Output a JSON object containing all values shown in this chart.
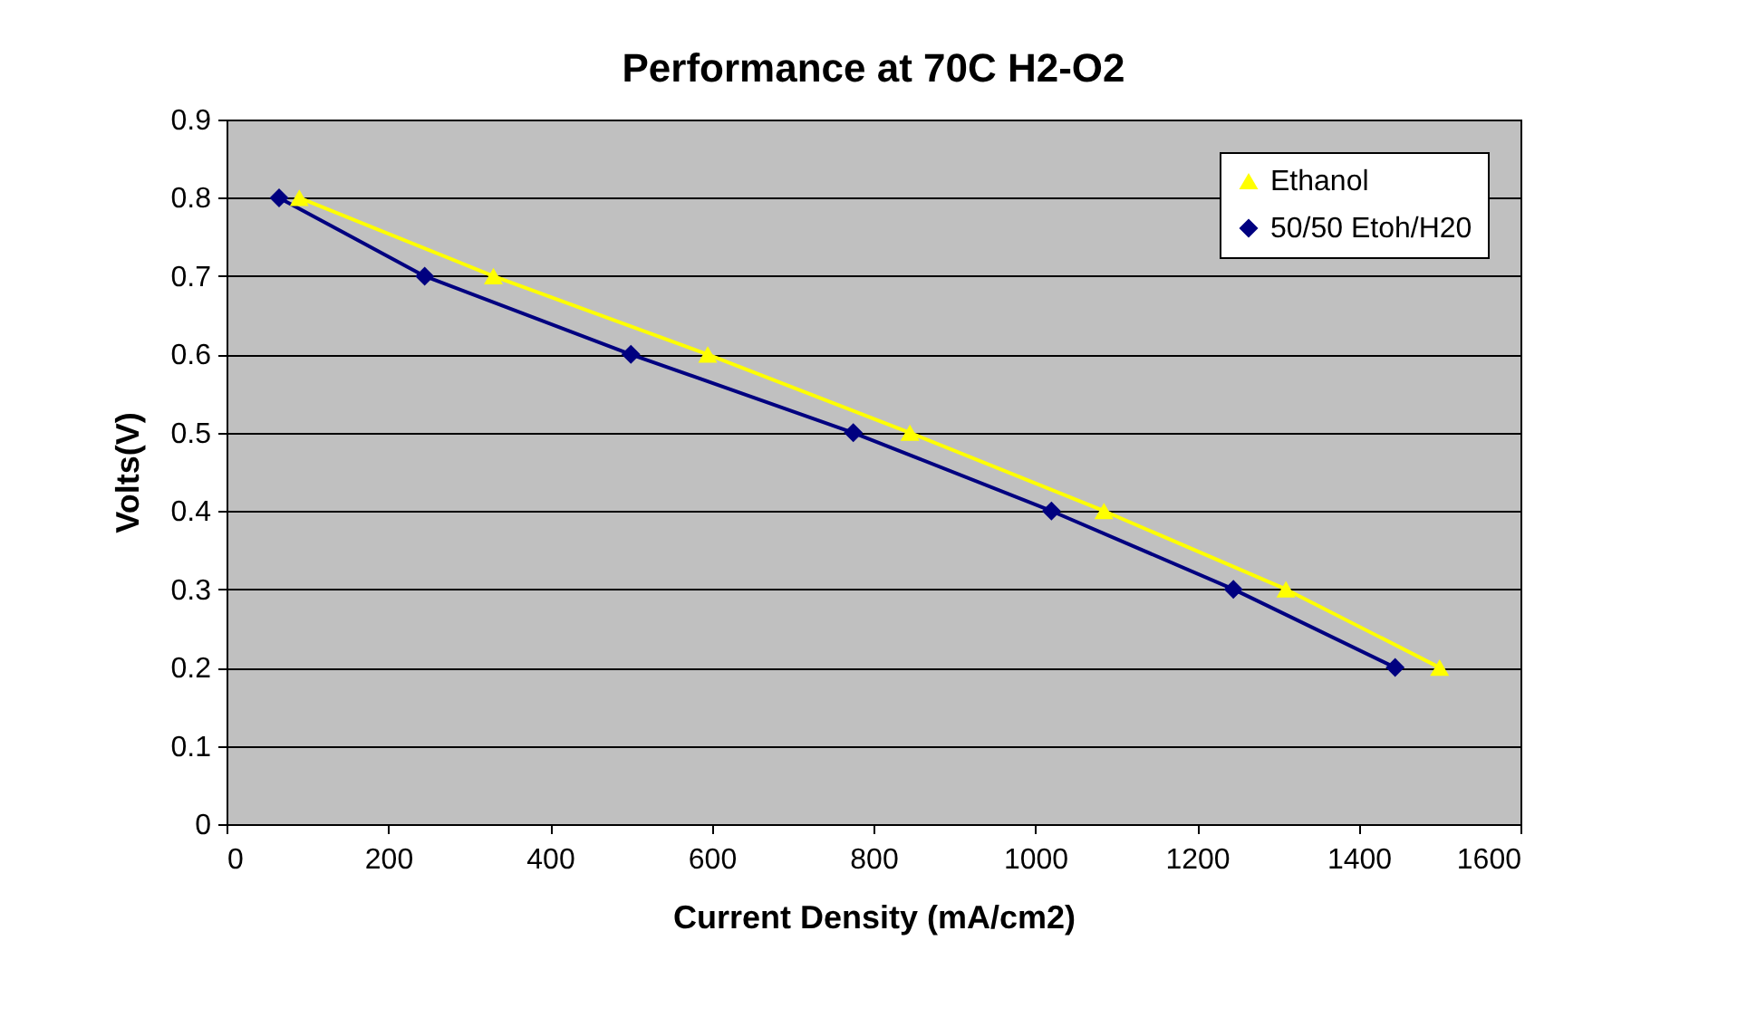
{
  "chart_data": {
    "type": "line",
    "title": "Performance at 70C H2-O2",
    "xlabel": "Current Density (mA/cm2)",
    "ylabel": "Volts(V)",
    "series": [
      {
        "name": "Ethanol",
        "color": "#ffff00",
        "marker": "triangle",
        "x": [
          90,
          330,
          595,
          845,
          1085,
          1310,
          1500
        ],
        "values": [
          0.8,
          0.7,
          0.6,
          0.5,
          0.4,
          0.3,
          0.2
        ]
      },
      {
        "name": "50/50 Etoh/H20",
        "color": "#000080",
        "marker": "diamond",
        "x": [
          65,
          245,
          500,
          775,
          1020,
          1245,
          1445
        ],
        "values": [
          0.8,
          0.7,
          0.6,
          0.5,
          0.4,
          0.3,
          0.2
        ]
      }
    ],
    "xlim": [
      0,
      1600
    ],
    "xticks": [
      0,
      200,
      400,
      600,
      800,
      1000,
      1200,
      1400,
      1600
    ],
    "ylim": [
      0,
      0.9
    ],
    "yticks": [
      0,
      0.1,
      0.2,
      0.3,
      0.4,
      0.5,
      0.6,
      0.7,
      0.8,
      0.9
    ],
    "grid": "y",
    "legend": "top right",
    "line_style": "solid"
  }
}
